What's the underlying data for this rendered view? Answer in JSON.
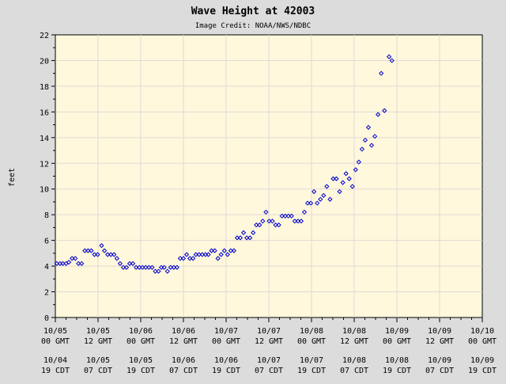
{
  "chart_data": {
    "type": "scatter",
    "title": "Wave Height at 42003",
    "subtitle": "Image Credit: NOAA/NWS/NDBC",
    "ylabel": "feet",
    "xlabel": "",
    "ylim": [
      0,
      22
    ],
    "yticks": [
      0,
      2,
      4,
      6,
      8,
      10,
      12,
      14,
      16,
      18,
      20,
      22
    ],
    "xlim": [
      0,
      120
    ],
    "x_unit": "hours since 10/05 00 GMT",
    "grid": true,
    "legend": "none",
    "x_ticks": [
      {
        "hour": 0,
        "gmt": [
          "10/05",
          "00 GMT"
        ],
        "cdt": [
          "10/04",
          "19 CDT"
        ]
      },
      {
        "hour": 12,
        "gmt": [
          "10/05",
          "12 GMT"
        ],
        "cdt": [
          "10/05",
          "07 CDT"
        ]
      },
      {
        "hour": 24,
        "gmt": [
          "10/06",
          "00 GMT"
        ],
        "cdt": [
          "10/05",
          "19 CDT"
        ]
      },
      {
        "hour": 36,
        "gmt": [
          "10/06",
          "12 GMT"
        ],
        "cdt": [
          "10/06",
          "07 CDT"
        ]
      },
      {
        "hour": 48,
        "gmt": [
          "10/07",
          "00 GMT"
        ],
        "cdt": [
          "10/06",
          "19 CDT"
        ]
      },
      {
        "hour": 60,
        "gmt": [
          "10/07",
          "12 GMT"
        ],
        "cdt": [
          "10/07",
          "07 CDT"
        ]
      },
      {
        "hour": 72,
        "gmt": [
          "10/08",
          "00 GMT"
        ],
        "cdt": [
          "10/07",
          "19 CDT"
        ]
      },
      {
        "hour": 84,
        "gmt": [
          "10/08",
          "12 GMT"
        ],
        "cdt": [
          "10/08",
          "07 CDT"
        ]
      },
      {
        "hour": 96,
        "gmt": [
          "10/09",
          "00 GMT"
        ],
        "cdt": [
          "10/08",
          "19 CDT"
        ]
      },
      {
        "hour": 108,
        "gmt": [
          "10/09",
          "12 GMT"
        ],
        "cdt": [
          "10/09",
          "07 CDT"
        ]
      },
      {
        "hour": 120,
        "gmt": [
          "10/10",
          "00 GMT"
        ],
        "cdt": [
          "10/09",
          "19 CDT"
        ]
      }
    ],
    "series": [
      {
        "name": "",
        "color": "#0000cc",
        "points": [
          [
            0.4,
            4.2
          ],
          [
            1.3,
            4.2
          ],
          [
            2.1,
            4.2
          ],
          [
            3.0,
            4.2
          ],
          [
            3.8,
            4.3
          ],
          [
            4.7,
            4.6
          ],
          [
            5.6,
            4.6
          ],
          [
            6.5,
            4.2
          ],
          [
            7.4,
            4.2
          ],
          [
            8.3,
            5.2
          ],
          [
            9.2,
            5.2
          ],
          [
            10.1,
            5.2
          ],
          [
            11.0,
            4.9
          ],
          [
            11.9,
            4.9
          ],
          [
            13.0,
            5.6
          ],
          [
            13.8,
            5.2
          ],
          [
            14.7,
            4.9
          ],
          [
            15.6,
            4.9
          ],
          [
            16.5,
            4.9
          ],
          [
            17.3,
            4.6
          ],
          [
            18.2,
            4.2
          ],
          [
            19.1,
            3.9
          ],
          [
            20.0,
            3.9
          ],
          [
            20.9,
            4.2
          ],
          [
            21.8,
            4.2
          ],
          [
            22.7,
            3.9
          ],
          [
            23.6,
            3.9
          ],
          [
            24.5,
            3.9
          ],
          [
            25.4,
            3.9
          ],
          [
            26.3,
            3.9
          ],
          [
            27.2,
            3.9
          ],
          [
            28.1,
            3.6
          ],
          [
            29.0,
            3.6
          ],
          [
            29.8,
            3.9
          ],
          [
            30.6,
            3.9
          ],
          [
            31.5,
            3.6
          ],
          [
            32.4,
            3.9
          ],
          [
            33.3,
            3.9
          ],
          [
            34.2,
            3.9
          ],
          [
            35.1,
            4.6
          ],
          [
            36.0,
            4.6
          ],
          [
            36.9,
            4.9
          ],
          [
            37.8,
            4.6
          ],
          [
            38.7,
            4.6
          ],
          [
            39.5,
            4.9
          ],
          [
            40.4,
            4.9
          ],
          [
            41.3,
            4.9
          ],
          [
            42.2,
            4.9
          ],
          [
            43.0,
            4.9
          ],
          [
            43.9,
            5.2
          ],
          [
            44.8,
            5.2
          ],
          [
            45.7,
            4.6
          ],
          [
            46.6,
            4.9
          ],
          [
            47.5,
            5.2
          ],
          [
            48.4,
            4.9
          ],
          [
            49.3,
            5.2
          ],
          [
            50.2,
            5.2
          ],
          [
            51.1,
            6.2
          ],
          [
            52.0,
            6.2
          ],
          [
            52.9,
            6.6
          ],
          [
            53.8,
            6.2
          ],
          [
            54.7,
            6.2
          ],
          [
            55.6,
            6.6
          ],
          [
            56.5,
            7.2
          ],
          [
            57.4,
            7.2
          ],
          [
            58.3,
            7.5
          ],
          [
            59.2,
            8.2
          ],
          [
            60.1,
            7.5
          ],
          [
            61.0,
            7.5
          ],
          [
            61.9,
            7.2
          ],
          [
            62.8,
            7.2
          ],
          [
            63.7,
            7.9
          ],
          [
            64.6,
            7.9
          ],
          [
            65.5,
            7.9
          ],
          [
            66.4,
            7.9
          ],
          [
            67.3,
            7.5
          ],
          [
            68.2,
            7.5
          ],
          [
            69.1,
            7.5
          ],
          [
            70.0,
            8.2
          ],
          [
            70.9,
            8.9
          ],
          [
            71.8,
            8.9
          ],
          [
            72.7,
            9.8
          ],
          [
            73.6,
            8.9
          ],
          [
            74.5,
            9.2
          ],
          [
            75.4,
            9.5
          ],
          [
            76.3,
            10.2
          ],
          [
            77.2,
            9.2
          ],
          [
            78.1,
            10.8
          ],
          [
            79.0,
            10.8
          ],
          [
            79.9,
            9.8
          ],
          [
            80.8,
            10.5
          ],
          [
            81.7,
            11.2
          ],
          [
            82.6,
            10.8
          ],
          [
            83.5,
            10.2
          ],
          [
            84.4,
            11.5
          ],
          [
            85.3,
            12.1
          ],
          [
            86.2,
            13.1
          ],
          [
            87.1,
            13.8
          ],
          [
            88.0,
            14.8
          ],
          [
            88.9,
            13.4
          ],
          [
            89.8,
            14.1
          ],
          [
            90.7,
            15.8
          ],
          [
            91.6,
            19.0
          ],
          [
            92.5,
            16.1
          ],
          [
            93.8,
            20.3
          ],
          [
            94.6,
            20.0
          ]
        ]
      }
    ]
  }
}
